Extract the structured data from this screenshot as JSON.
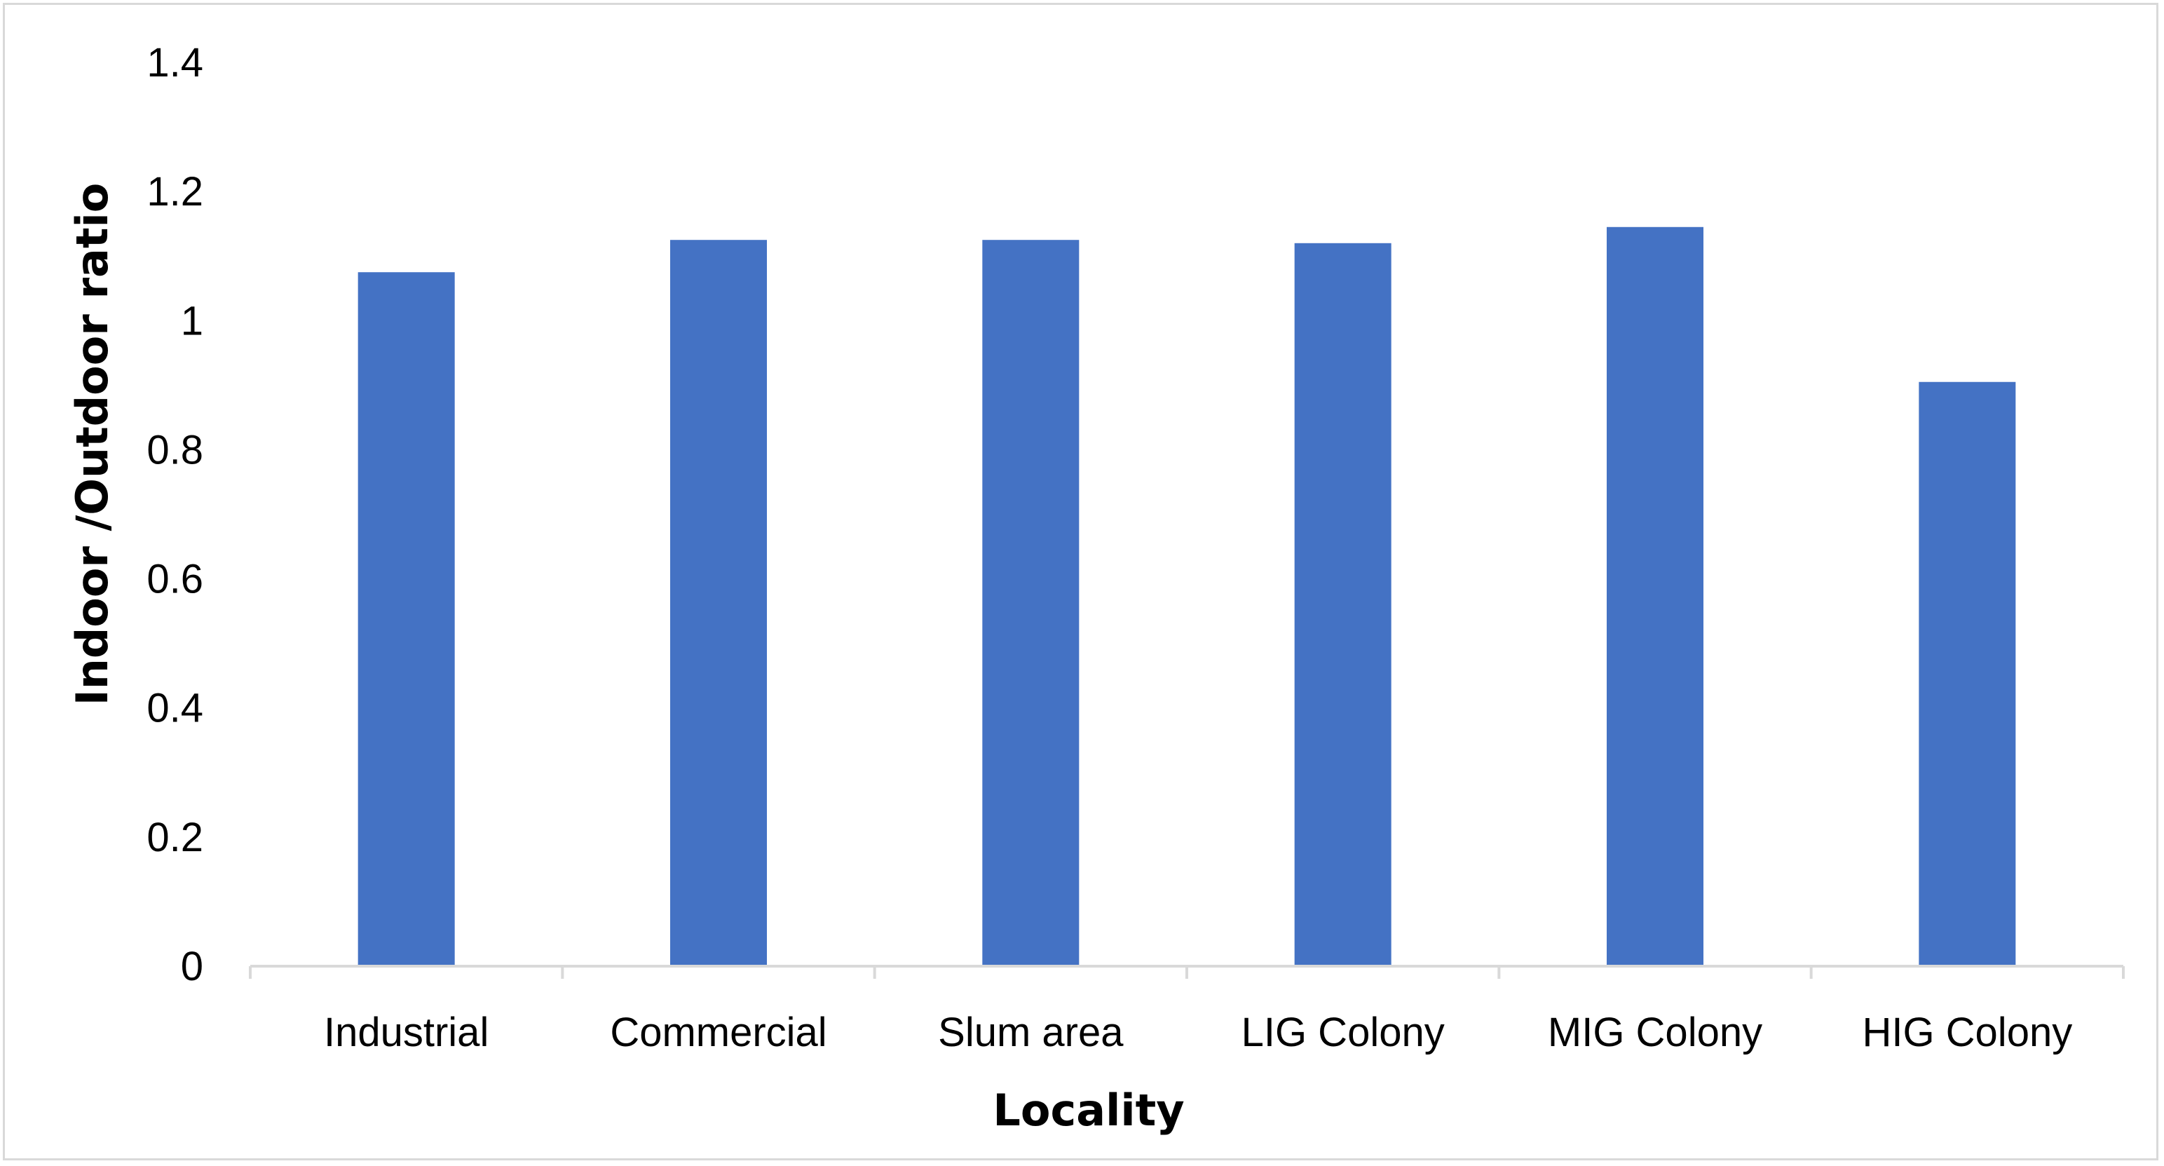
{
  "chart_data": {
    "type": "bar",
    "title": "",
    "xlabel": "Locality",
    "ylabel": "Indoor /Outdoor ratio",
    "categories": [
      "Industrial",
      "Commercial",
      "Slum area",
      "LIG Colony",
      "MIG Colony",
      "HIG Colony"
    ],
    "values": [
      1.075,
      1.125,
      1.125,
      1.12,
      1.145,
      0.905
    ],
    "ylim": [
      0,
      1.4
    ],
    "yticks": [
      "0",
      "0.2",
      "0.4",
      "0.6",
      "0.8",
      "1",
      "1.2",
      "1.4"
    ],
    "grid": false,
    "legend": "none",
    "bar_color": "#4472c4",
    "axis_color": "#d9d9d9"
  }
}
